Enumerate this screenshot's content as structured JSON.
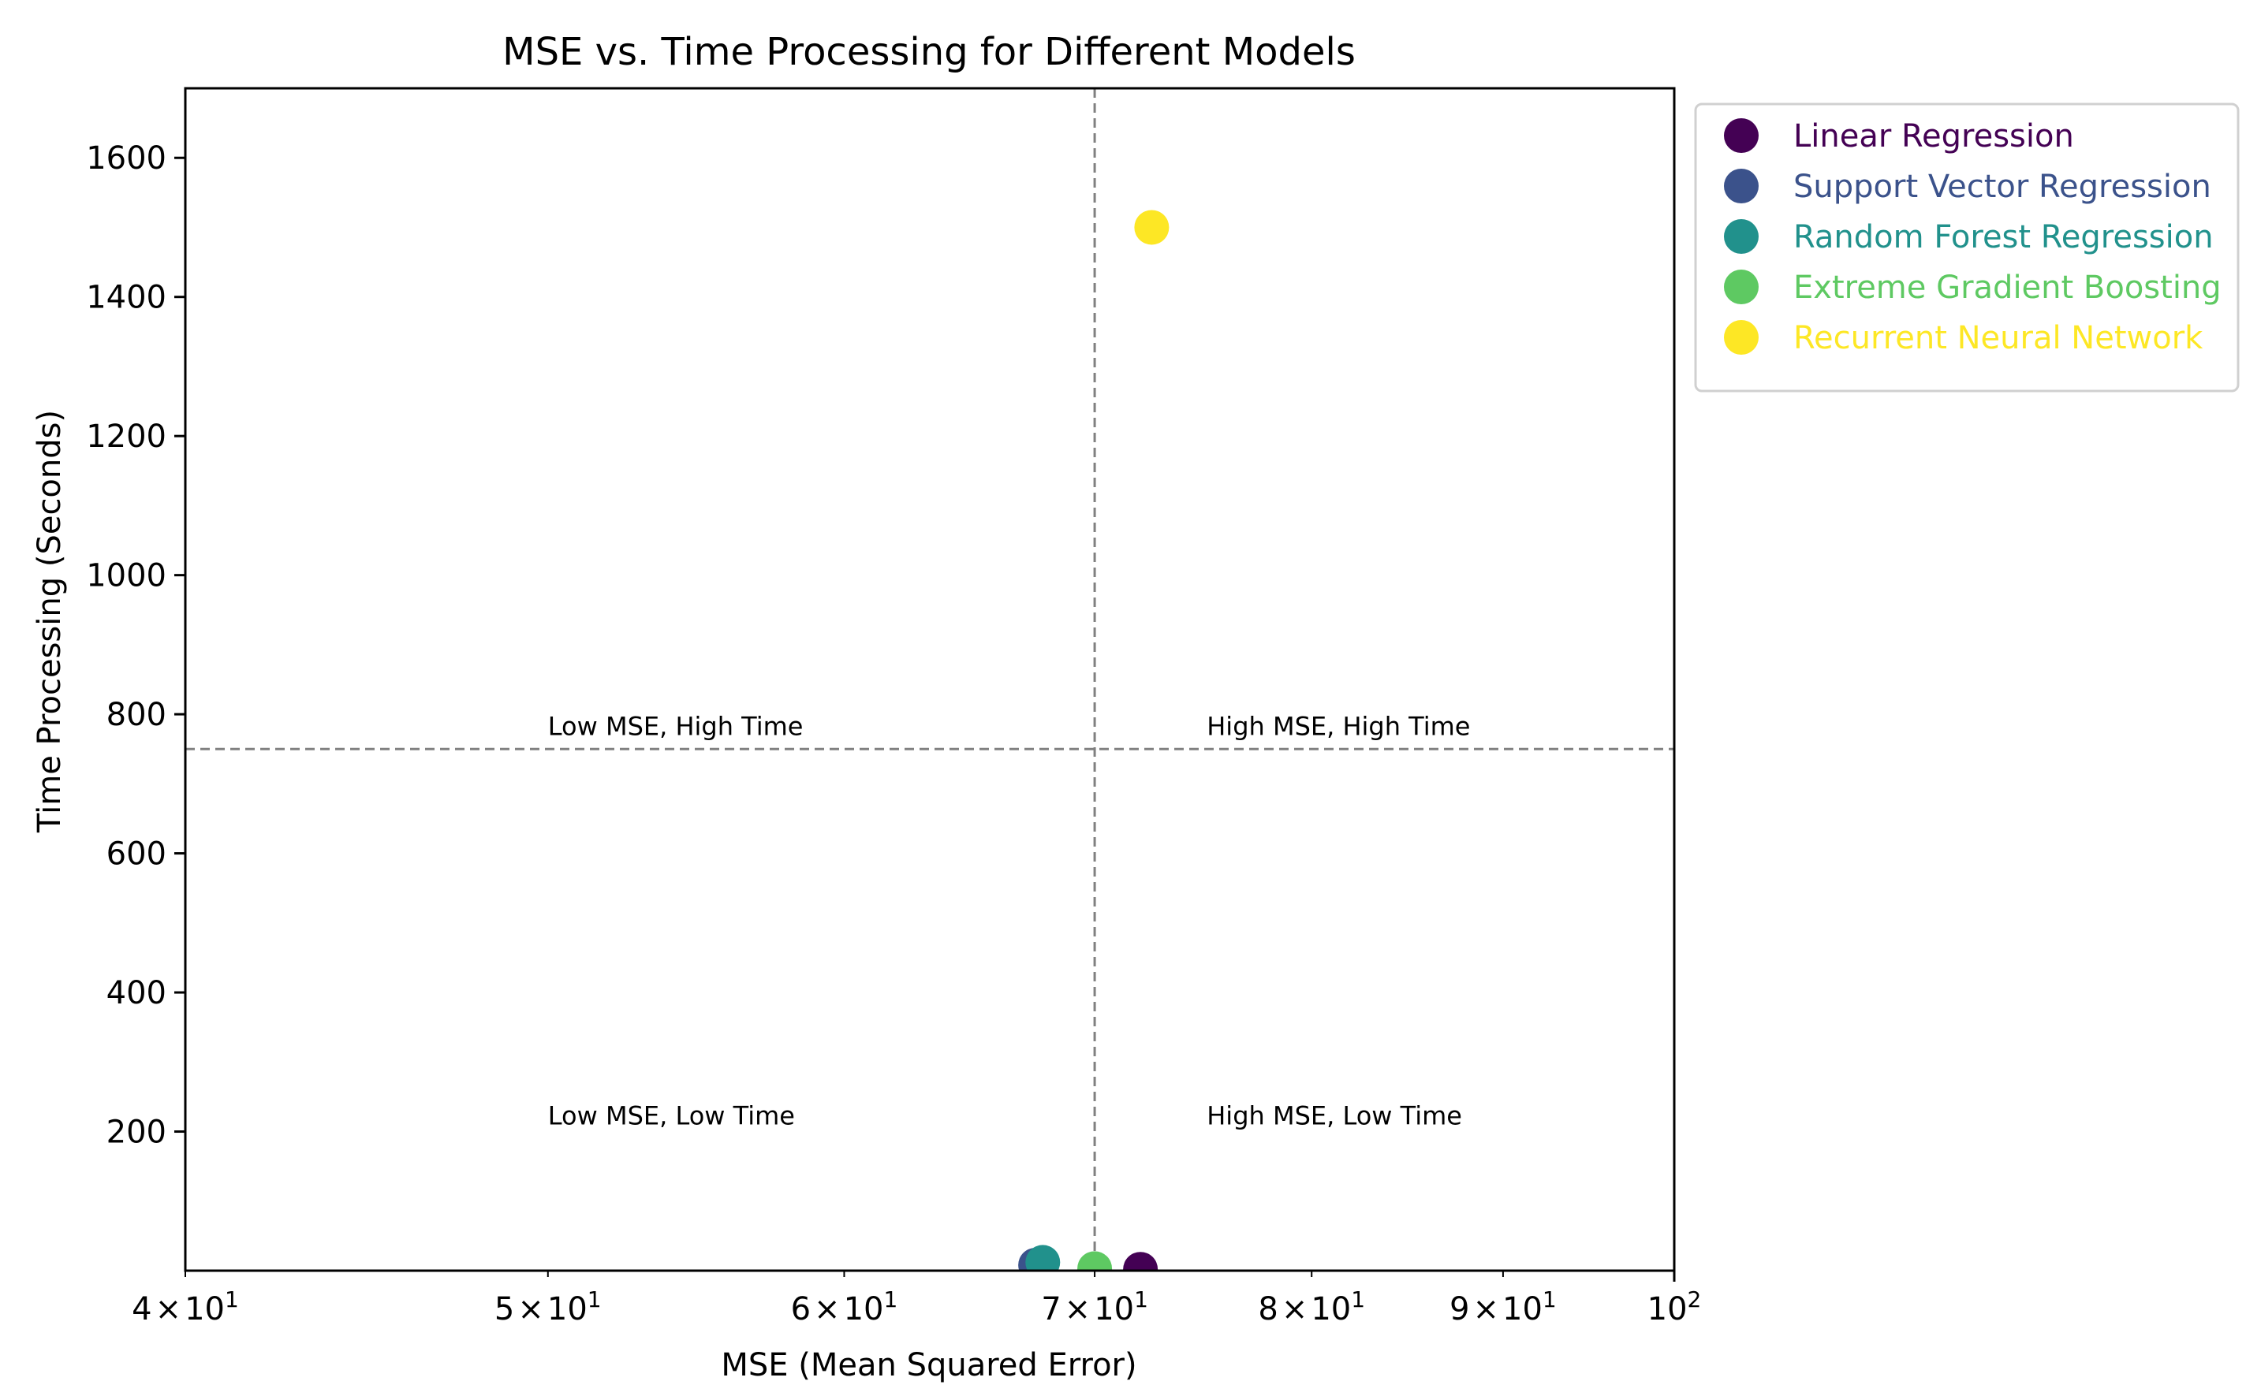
{
  "chart_data": {
    "type": "scatter",
    "title": "MSE vs. Time Processing for Different Models",
    "xlabel": "MSE (Mean Squared Error)",
    "ylabel": "Time Processing (Seconds)",
    "xscale": "log",
    "xlim": [
      40,
      100
    ],
    "ylim": [
      0,
      1700
    ],
    "x_ticks": [
      {
        "value": 40,
        "base": "4",
        "mult": "×",
        "pow": "10",
        "exp": "1"
      },
      {
        "value": 50,
        "base": "5",
        "mult": "×",
        "pow": "10",
        "exp": "1"
      },
      {
        "value": 60,
        "base": "6",
        "mult": "×",
        "pow": "10",
        "exp": "1"
      },
      {
        "value": 70,
        "base": "7",
        "mult": "×",
        "pow": "10",
        "exp": "1"
      },
      {
        "value": 80,
        "base": "8",
        "mult": "×",
        "pow": "10",
        "exp": "1"
      },
      {
        "value": 90,
        "base": "9",
        "mult": "×",
        "pow": "10",
        "exp": "1"
      },
      {
        "value": 100,
        "base": "",
        "mult": "",
        "pow": "10",
        "exp": "2"
      }
    ],
    "y_ticks": [
      200,
      400,
      600,
      800,
      1000,
      1200,
      1400,
      1600
    ],
    "threshold_x": 70,
    "threshold_y": 750,
    "quadrant_labels": [
      {
        "text": "Low MSE, High Time",
        "x": 50,
        "y": 770
      },
      {
        "text": "High MSE, High Time",
        "x": 75,
        "y": 770
      },
      {
        "text": "Low MSE, Low Time",
        "x": 50,
        "y": 210
      },
      {
        "text": "High MSE, Low Time",
        "x": 75,
        "y": 210
      }
    ],
    "series": [
      {
        "name": "Linear Regression",
        "x": 72.0,
        "y": 2,
        "color": "#440154"
      },
      {
        "name": "Support Vector Regression",
        "x": 67.5,
        "y": 8,
        "color": "#3b528b"
      },
      {
        "name": "Random Forest Regression",
        "x": 67.8,
        "y": 12,
        "color": "#21918c"
      },
      {
        "name": "Extreme Gradient Boosting",
        "x": 70.0,
        "y": 3,
        "color": "#5ec962"
      },
      {
        "name": "Recurrent Neural Network",
        "x": 72.5,
        "y": 1500,
        "color": "#fde725"
      }
    ],
    "legend_position": "upper right, outside axes"
  }
}
